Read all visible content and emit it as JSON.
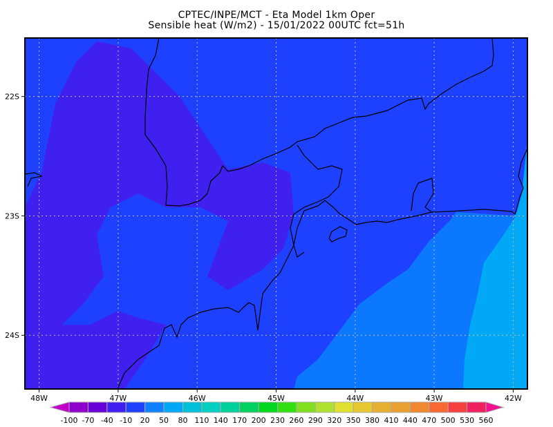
{
  "header": {
    "title_line1": "CPTEC/INPE/MCT -   Eta Model 1km Oper",
    "title_line2": "Sensible heat (W/m2) - 15/01/2022 00UTC fct=51h"
  },
  "map": {
    "lon_ticks": [
      "48W",
      "47W",
      "46W",
      "45W",
      "44W",
      "43W",
      "42W"
    ],
    "lat_ticks": [
      "22S",
      "23S",
      "24S"
    ],
    "lon_values": [
      -48,
      -47,
      -46,
      -45,
      -44,
      -43,
      -42
    ],
    "lat_values": [
      -22,
      -23,
      -24
    ],
    "lon_range": [
      -48.18,
      -41.82
    ],
    "lat_range": [
      -24.45,
      -21.51
    ],
    "grid": "dotted",
    "colors": {
      "land_base": "#1e40ff",
      "land_low": "#4020ee",
      "ocean_near": "#0c78ff",
      "ocean_far": "#00a8f5",
      "grid": "#c8c0a0",
      "coast": "#000000"
    }
  },
  "colorbar": {
    "labels": [
      "-100",
      "-70",
      "-40",
      "-10",
      "20",
      "50",
      "80",
      "110",
      "140",
      "170",
      "200",
      "230",
      "260",
      "290",
      "320",
      "350",
      "380",
      "410",
      "440",
      "470",
      "500",
      "530",
      "560"
    ],
    "under_color": "#c000c8",
    "over_color": "#f01090",
    "colors": [
      "#9000cc",
      "#6a00d8",
      "#4020f0",
      "#2040ff",
      "#1080ff",
      "#00a8f5",
      "#00c0d8",
      "#00d0c0",
      "#00d09a",
      "#00d060",
      "#00d820",
      "#30e010",
      "#80e020",
      "#b0e030",
      "#e0e030",
      "#e8c830",
      "#e8b030",
      "#e8a030",
      "#f08830",
      "#f86830",
      "#f84040",
      "#f02060"
    ]
  }
}
